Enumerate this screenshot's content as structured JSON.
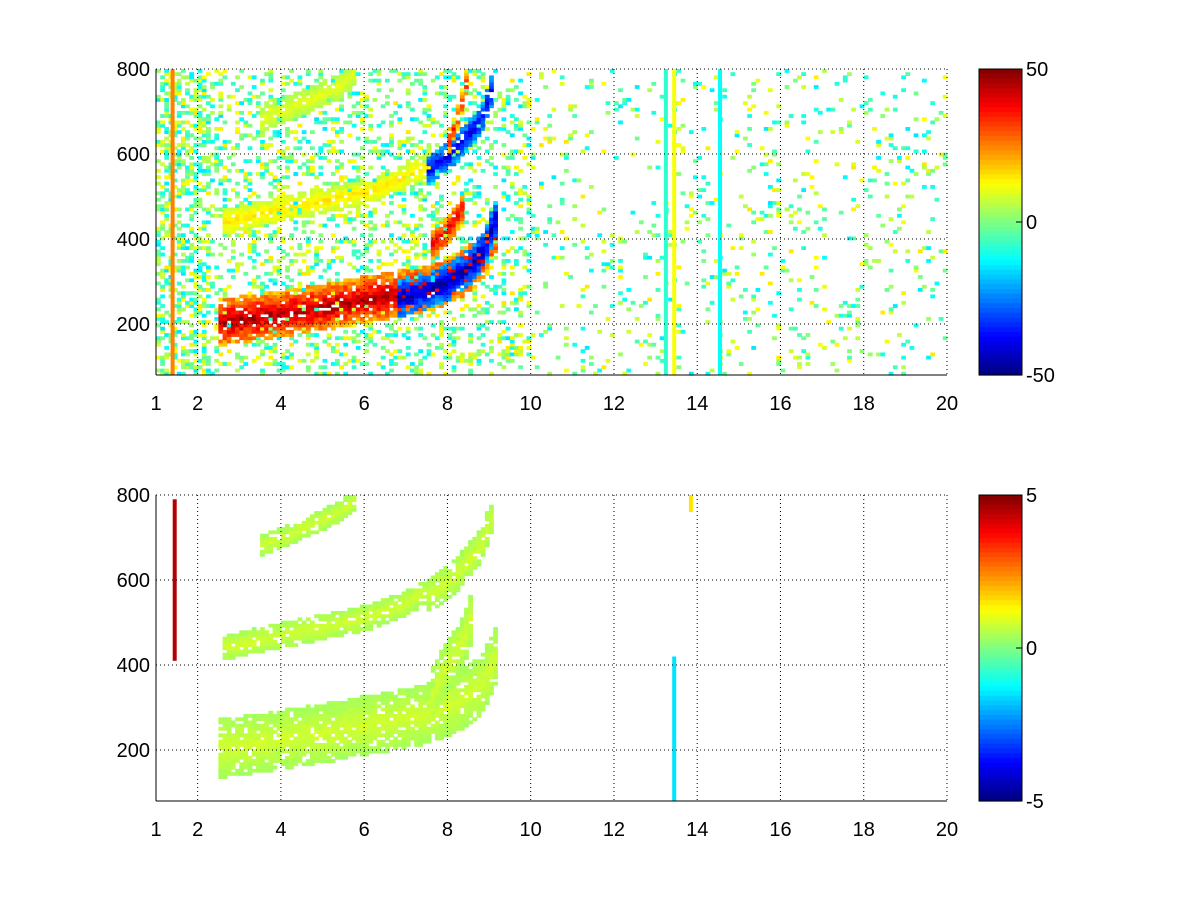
{
  "chart_data": [
    {
      "type": "heatmap",
      "title": "",
      "xlabel": "",
      "ylabel": "",
      "xlim": [
        1,
        20
      ],
      "ylim": [
        80,
        800
      ],
      "x_ticks": [
        1,
        2,
        4,
        6,
        8,
        10,
        12,
        14,
        16,
        18,
        20
      ],
      "x_tick_labels": [
        "1",
        "2",
        "4",
        "6",
        "8",
        "10",
        "12",
        "14",
        "16",
        "18",
        "20"
      ],
      "y_ticks": [
        200,
        400,
        600,
        800
      ],
      "y_tick_labels": [
        "200",
        "400",
        "600",
        "800"
      ],
      "grid": true,
      "colormap": "jet",
      "clim": [
        -50,
        50
      ],
      "colorbar": {
        "ticks": [
          50,
          0,
          -50
        ],
        "tick_labels": [
          "50",
          "0",
          "-50"
        ],
        "placement": "right"
      },
      "ridges": [
        {
          "x": [
            2.5,
            3,
            4,
            5,
            5.8,
            6.5,
            7.5,
            8.2,
            8.8,
            9.2
          ],
          "y": [
            205,
            210,
            225,
            240,
            255,
            265,
            285,
            310,
            350,
            430
          ],
          "value": 45,
          "band": 55
        },
        {
          "x": [
            6.8,
            7.5,
            8,
            8.5,
            8.9,
            9.2
          ],
          "y": [
            260,
            280,
            300,
            330,
            380,
            460
          ],
          "value": -45,
          "band": 45
        },
        {
          "x": [
            2.6,
            4,
            5,
            6,
            7,
            7.6
          ],
          "y": [
            440,
            470,
            490,
            510,
            545,
            580
          ],
          "value": 15,
          "band": 30
        },
        {
          "x": [
            3.5,
            4.5,
            5.4,
            5.8
          ],
          "y": [
            680,
            720,
            760,
            790
          ],
          "value": 10,
          "band": 30
        },
        {
          "x": [
            7.5,
            8.2,
            8.8,
            9.1
          ],
          "y": [
            560,
            610,
            680,
            760
          ],
          "value": -40,
          "band": 35
        },
        {
          "x": [
            7.6,
            8.0,
            8.4
          ],
          "y": [
            380,
            420,
            480
          ],
          "value": 40,
          "band": 35
        },
        {
          "x": [
            8.0,
            8.3,
            8.5
          ],
          "y": [
            620,
            700,
            790
          ],
          "value": 35,
          "band": 30
        }
      ],
      "vertical_lines": [
        {
          "x": 1.35,
          "value": 25
        },
        {
          "x": 13.2,
          "value": -8
        },
        {
          "x": 13.4,
          "value": 12
        },
        {
          "x": 14.5,
          "value": -12
        }
      ],
      "background_value_range": [
        -15,
        15
      ]
    },
    {
      "type": "heatmap",
      "title": "",
      "xlabel": "",
      "ylabel": "",
      "xlim": [
        1,
        20
      ],
      "ylim": [
        80,
        800
      ],
      "x_ticks": [
        1,
        2,
        4,
        6,
        8,
        10,
        12,
        14,
        16,
        18,
        20
      ],
      "x_tick_labels": [
        "1",
        "2",
        "4",
        "6",
        "8",
        "10",
        "12",
        "14",
        "16",
        "18",
        "20"
      ],
      "y_ticks": [
        200,
        400,
        600,
        800
      ],
      "y_tick_labels": [
        "200",
        "400",
        "600",
        "800"
      ],
      "grid": true,
      "colormap": "jet",
      "clim": [
        -5,
        5
      ],
      "colorbar": {
        "ticks": [
          5,
          0,
          -5
        ],
        "tick_labels": [
          "5",
          "0",
          "-5"
        ],
        "placement": "right"
      },
      "ridges": [
        {
          "x": [
            2.5,
            3,
            4,
            5,
            5.8,
            6.5,
            7.5,
            8.2,
            8.8,
            9.2
          ],
          "y": [
            205,
            210,
            225,
            240,
            255,
            265,
            285,
            310,
            350,
            430
          ],
          "value": 0.8,
          "band": 70
        },
        {
          "x": [
            2.6,
            4,
            5,
            6,
            7,
            7.6
          ],
          "y": [
            440,
            470,
            490,
            510,
            545,
            580
          ],
          "value": 0.8,
          "band": 30
        },
        {
          "x": [
            3.5,
            4.5,
            5.4,
            5.8
          ],
          "y": [
            680,
            720,
            760,
            790
          ],
          "value": 0.8,
          "band": 25
        },
        {
          "x": [
            7.5,
            8.2,
            8.8,
            9.1
          ],
          "y": [
            560,
            610,
            680,
            760
          ],
          "value": 0.8,
          "band": 40
        },
        {
          "x": [
            7.6,
            8.0,
            8.4,
            8.6
          ],
          "y": [
            330,
            400,
            460,
            520
          ],
          "value": 0.8,
          "band": 60
        }
      ],
      "vertical_lines": [
        {
          "x": 1.4,
          "value": 4.5,
          "y_range": [
            410,
            790
          ]
        },
        {
          "x": 13.4,
          "value": -1.5,
          "y_range": [
            80,
            420
          ]
        },
        {
          "x": 13.8,
          "value": 1.5,
          "y_range": [
            760,
            800
          ]
        }
      ]
    }
  ]
}
